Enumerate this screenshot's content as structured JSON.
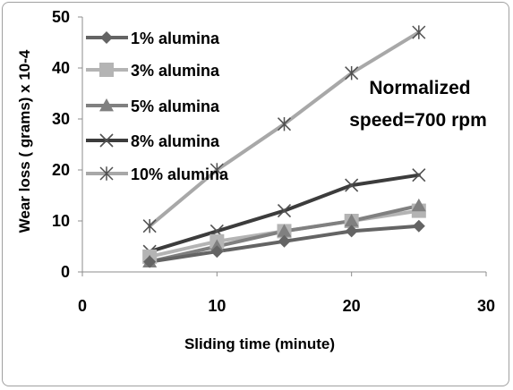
{
  "chart_data": {
    "type": "line",
    "title": "",
    "xlabel": "Sliding time (minute)",
    "ylabel": "Wear loss ( grams) x 10-4",
    "xlim": [
      0,
      30
    ],
    "ylim": [
      0,
      50
    ],
    "xticks": [
      0,
      10,
      20,
      30
    ],
    "yticks": [
      0,
      10,
      20,
      30,
      40,
      50
    ],
    "grid": false,
    "legend_position": "top-left",
    "x": [
      5,
      10,
      15,
      20,
      25
    ],
    "series": [
      {
        "name": "1% alumina",
        "values": [
          2,
          4,
          6,
          8,
          9
        ],
        "color": "#646464",
        "marker": "diamond"
      },
      {
        "name": "3% alumina",
        "values": [
          3,
          6,
          8,
          10,
          12
        ],
        "color": "#b4b4b4",
        "marker": "square"
      },
      {
        "name": "5% alumina",
        "values": [
          2,
          5,
          8,
          10,
          13
        ],
        "color": "#808080",
        "marker": "triangle"
      },
      {
        "name": "8% alumina",
        "values": [
          4,
          8,
          12,
          17,
          19
        ],
        "color": "#3c3c3c",
        "marker": "x"
      },
      {
        "name": "10% alumina",
        "values": [
          9,
          20,
          29,
          39,
          47
        ],
        "color": "#a8a8a8",
        "marker": "star"
      }
    ],
    "annotation": [
      "Normalized",
      "speed=700 rpm"
    ]
  }
}
